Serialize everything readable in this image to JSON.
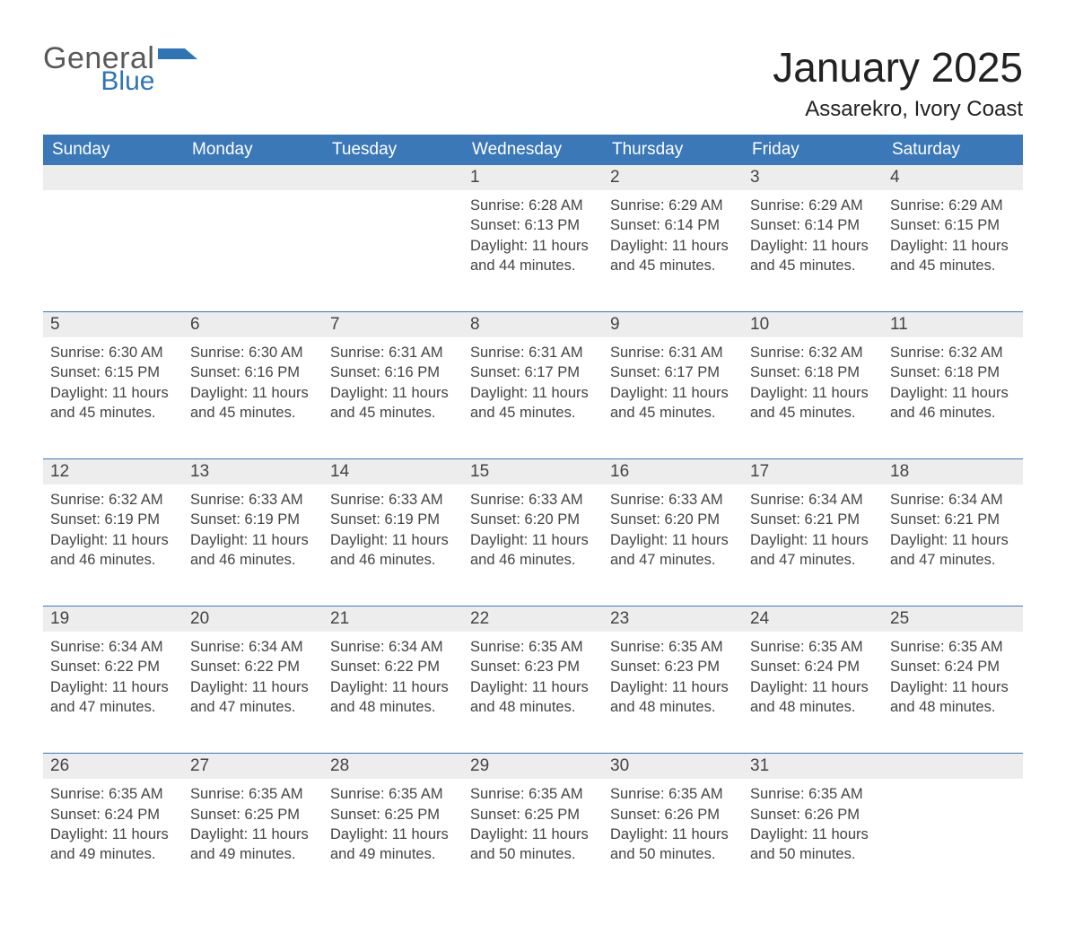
{
  "brand": {
    "word1": "General",
    "word2": "Blue"
  },
  "title": "January 2025",
  "location": "Assarekro, Ivory Coast",
  "colors": {
    "header_bg": "#3b78b8",
    "row_bg": "#ededed",
    "border": "#3b78b8",
    "text": "#333333",
    "logo_gray": "#58595b",
    "logo_blue": "#2e75b6"
  },
  "typography": {
    "title_fontsize": 46,
    "location_fontsize": 24,
    "header_fontsize": 19,
    "daynum_fontsize": 19,
    "detail_fontsize": 16.5,
    "font_family": "Arial"
  },
  "daysOfWeek": [
    "Sunday",
    "Monday",
    "Tuesday",
    "Wednesday",
    "Thursday",
    "Friday",
    "Saturday"
  ],
  "labels": {
    "sunrise": "Sunrise: ",
    "sunset": "Sunset: ",
    "daylight": "Daylight: "
  },
  "weeks": [
    [
      null,
      null,
      null,
      {
        "n": "1",
        "sr": "6:28 AM",
        "ss": "6:13 PM",
        "dl": "11 hours and 44 minutes."
      },
      {
        "n": "2",
        "sr": "6:29 AM",
        "ss": "6:14 PM",
        "dl": "11 hours and 45 minutes."
      },
      {
        "n": "3",
        "sr": "6:29 AM",
        "ss": "6:14 PM",
        "dl": "11 hours and 45 minutes."
      },
      {
        "n": "4",
        "sr": "6:29 AM",
        "ss": "6:15 PM",
        "dl": "11 hours and 45 minutes."
      }
    ],
    [
      {
        "n": "5",
        "sr": "6:30 AM",
        "ss": "6:15 PM",
        "dl": "11 hours and 45 minutes."
      },
      {
        "n": "6",
        "sr": "6:30 AM",
        "ss": "6:16 PM",
        "dl": "11 hours and 45 minutes."
      },
      {
        "n": "7",
        "sr": "6:31 AM",
        "ss": "6:16 PM",
        "dl": "11 hours and 45 minutes."
      },
      {
        "n": "8",
        "sr": "6:31 AM",
        "ss": "6:17 PM",
        "dl": "11 hours and 45 minutes."
      },
      {
        "n": "9",
        "sr": "6:31 AM",
        "ss": "6:17 PM",
        "dl": "11 hours and 45 minutes."
      },
      {
        "n": "10",
        "sr": "6:32 AM",
        "ss": "6:18 PM",
        "dl": "11 hours and 45 minutes."
      },
      {
        "n": "11",
        "sr": "6:32 AM",
        "ss": "6:18 PM",
        "dl": "11 hours and 46 minutes."
      }
    ],
    [
      {
        "n": "12",
        "sr": "6:32 AM",
        "ss": "6:19 PM",
        "dl": "11 hours and 46 minutes."
      },
      {
        "n": "13",
        "sr": "6:33 AM",
        "ss": "6:19 PM",
        "dl": "11 hours and 46 minutes."
      },
      {
        "n": "14",
        "sr": "6:33 AM",
        "ss": "6:19 PM",
        "dl": "11 hours and 46 minutes."
      },
      {
        "n": "15",
        "sr": "6:33 AM",
        "ss": "6:20 PM",
        "dl": "11 hours and 46 minutes."
      },
      {
        "n": "16",
        "sr": "6:33 AM",
        "ss": "6:20 PM",
        "dl": "11 hours and 47 minutes."
      },
      {
        "n": "17",
        "sr": "6:34 AM",
        "ss": "6:21 PM",
        "dl": "11 hours and 47 minutes."
      },
      {
        "n": "18",
        "sr": "6:34 AM",
        "ss": "6:21 PM",
        "dl": "11 hours and 47 minutes."
      }
    ],
    [
      {
        "n": "19",
        "sr": "6:34 AM",
        "ss": "6:22 PM",
        "dl": "11 hours and 47 minutes."
      },
      {
        "n": "20",
        "sr": "6:34 AM",
        "ss": "6:22 PM",
        "dl": "11 hours and 47 minutes."
      },
      {
        "n": "21",
        "sr": "6:34 AM",
        "ss": "6:22 PM",
        "dl": "11 hours and 48 minutes."
      },
      {
        "n": "22",
        "sr": "6:35 AM",
        "ss": "6:23 PM",
        "dl": "11 hours and 48 minutes."
      },
      {
        "n": "23",
        "sr": "6:35 AM",
        "ss": "6:23 PM",
        "dl": "11 hours and 48 minutes."
      },
      {
        "n": "24",
        "sr": "6:35 AM",
        "ss": "6:24 PM",
        "dl": "11 hours and 48 minutes."
      },
      {
        "n": "25",
        "sr": "6:35 AM",
        "ss": "6:24 PM",
        "dl": "11 hours and 48 minutes."
      }
    ],
    [
      {
        "n": "26",
        "sr": "6:35 AM",
        "ss": "6:24 PM",
        "dl": "11 hours and 49 minutes."
      },
      {
        "n": "27",
        "sr": "6:35 AM",
        "ss": "6:25 PM",
        "dl": "11 hours and 49 minutes."
      },
      {
        "n": "28",
        "sr": "6:35 AM",
        "ss": "6:25 PM",
        "dl": "11 hours and 49 minutes."
      },
      {
        "n": "29",
        "sr": "6:35 AM",
        "ss": "6:25 PM",
        "dl": "11 hours and 50 minutes."
      },
      {
        "n": "30",
        "sr": "6:35 AM",
        "ss": "6:26 PM",
        "dl": "11 hours and 50 minutes."
      },
      {
        "n": "31",
        "sr": "6:35 AM",
        "ss": "6:26 PM",
        "dl": "11 hours and 50 minutes."
      },
      null
    ]
  ]
}
